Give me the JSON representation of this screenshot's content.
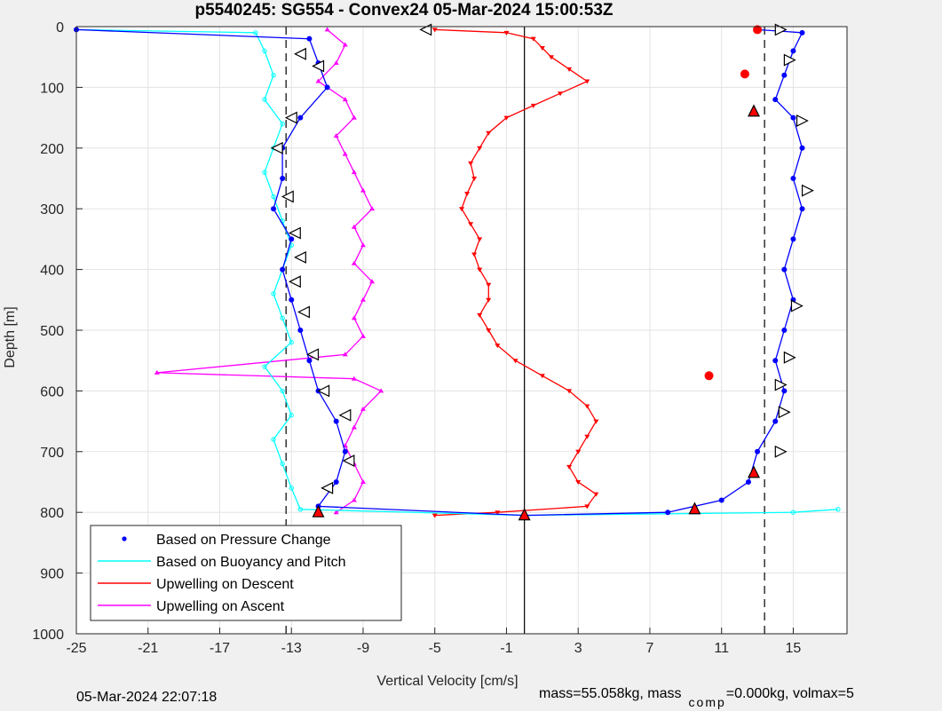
{
  "figure": {
    "background": "#f0f0f0",
    "footer_timestamp": "05-Mar-2024 22:07:18",
    "footer_mass_a": "mass=55.058kg, mass",
    "footer_mass_sub": "comp",
    "footer_mass_b": "=0.000kg, volmax=5"
  },
  "chart_data": {
    "type": "line",
    "title": "p5540245: SG554 - Convex24 05-Mar-2024 15:00:53Z",
    "xlabel": "Vertical Velocity [cm/s]",
    "ylabel": "Depth [m]",
    "xlim": [
      -25,
      18
    ],
    "ylim": [
      0,
      1000
    ],
    "y_reversed": true,
    "grid": true,
    "xticks": [
      -25,
      -21,
      -17,
      -13,
      -9,
      -5,
      -1,
      3,
      7,
      11,
      15
    ],
    "yticks": [
      0,
      100,
      200,
      300,
      400,
      500,
      600,
      700,
      800,
      900,
      1000
    ],
    "reference_lines": [
      {
        "x": -13.3,
        "style": "dashed"
      },
      {
        "x": 0,
        "style": "solid"
      },
      {
        "x": 13.4,
        "style": "dashed"
      }
    ],
    "legend": {
      "location": "bottom-left",
      "entries": [
        {
          "label": "Based on Pressure Change",
          "color": "#0000ff",
          "marker": "dot"
        },
        {
          "label": "Based on Buoyancy and Pitch",
          "color": "#00ffff",
          "marker": "line"
        },
        {
          "label": "Upwelling on Descent",
          "color": "#ff0000",
          "marker": "line"
        },
        {
          "label": "Upwelling on Ascent",
          "color": "#ff00ff",
          "marker": "line"
        }
      ]
    },
    "colors": {
      "pressure": "#0000ff",
      "buoyancy": "#00ffff",
      "descent": "#ff0000",
      "ascent": "#ff00ff",
      "triangle_fill_dive": "#ffffff",
      "triangle_fill_climb": "#ff0000"
    },
    "series": [
      {
        "name": "Upwelling on Descent",
        "color": "#ff0000",
        "points": [
          [
            -5.0,
            5
          ],
          [
            -1.0,
            10
          ],
          [
            0.5,
            20
          ],
          [
            1.0,
            35
          ],
          [
            1.5,
            50
          ],
          [
            2.5,
            70
          ],
          [
            3.5,
            90
          ],
          [
            2.0,
            110
          ],
          [
            0.5,
            130
          ],
          [
            -1.0,
            150
          ],
          [
            -2.0,
            175
          ],
          [
            -2.5,
            200
          ],
          [
            -3.0,
            225
          ],
          [
            -2.8,
            250
          ],
          [
            -3.2,
            275
          ],
          [
            -3.5,
            300
          ],
          [
            -3.0,
            325
          ],
          [
            -2.5,
            350
          ],
          [
            -2.8,
            375
          ],
          [
            -2.5,
            400
          ],
          [
            -2.0,
            425
          ],
          [
            -2.0,
            450
          ],
          [
            -2.5,
            475
          ],
          [
            -2.0,
            500
          ],
          [
            -1.5,
            525
          ],
          [
            -0.5,
            550
          ],
          [
            1.0,
            575
          ],
          [
            2.5,
            600
          ],
          [
            3.5,
            625
          ],
          [
            4.0,
            650
          ],
          [
            3.5,
            675
          ],
          [
            3.0,
            700
          ],
          [
            2.5,
            725
          ],
          [
            3.0,
            750
          ],
          [
            4.0,
            770
          ],
          [
            3.5,
            790
          ],
          [
            -1.5,
            800
          ],
          [
            -5.0,
            805
          ]
        ]
      },
      {
        "name": "Upwelling on Ascent",
        "color": "#ff00ff",
        "points": [
          [
            -11.0,
            5
          ],
          [
            -10.0,
            30
          ],
          [
            -10.5,
            60
          ],
          [
            -11.5,
            90
          ],
          [
            -10.0,
            120
          ],
          [
            -9.5,
            150
          ],
          [
            -10.5,
            180
          ],
          [
            -10.0,
            210
          ],
          [
            -9.5,
            240
          ],
          [
            -9.0,
            270
          ],
          [
            -8.5,
            300
          ],
          [
            -9.5,
            330
          ],
          [
            -9.0,
            360
          ],
          [
            -9.5,
            390
          ],
          [
            -8.5,
            420
          ],
          [
            -9.0,
            450
          ],
          [
            -9.5,
            480
          ],
          [
            -9.0,
            510
          ],
          [
            -10.0,
            540
          ],
          [
            -20.5,
            570
          ],
          [
            -9.5,
            580
          ],
          [
            -8.0,
            600
          ],
          [
            -9.0,
            630
          ],
          [
            -9.5,
            660
          ],
          [
            -10.0,
            690
          ],
          [
            -9.5,
            720
          ],
          [
            -9.0,
            750
          ],
          [
            -9.5,
            780
          ],
          [
            -10.5,
            800
          ]
        ]
      },
      {
        "name": "Based on Buoyancy and Pitch",
        "color": "#00ffff",
        "points": [
          [
            -25.0,
            5
          ],
          [
            -15.0,
            10
          ],
          [
            -14.5,
            40
          ],
          [
            -14.0,
            80
          ],
          [
            -14.5,
            120
          ],
          [
            -13.5,
            160
          ],
          [
            -14.0,
            200
          ],
          [
            -14.5,
            240
          ],
          [
            -14.0,
            280
          ],
          [
            -13.5,
            320
          ],
          [
            -13.0,
            360
          ],
          [
            -13.5,
            400
          ],
          [
            -14.0,
            440
          ],
          [
            -13.5,
            480
          ],
          [
            -13.0,
            520
          ],
          [
            -14.5,
            560
          ],
          [
            -13.5,
            600
          ],
          [
            -13.0,
            640
          ],
          [
            -14.0,
            680
          ],
          [
            -13.5,
            720
          ],
          [
            -13.0,
            760
          ],
          [
            -12.5,
            795
          ],
          [
            0.0,
            805
          ],
          [
            15.0,
            800
          ],
          [
            17.5,
            795
          ]
        ]
      },
      {
        "name": "Based on Pressure Change",
        "color": "#0000ff",
        "points": [
          [
            -25.0,
            5
          ],
          [
            -12.0,
            20
          ],
          [
            -11.5,
            60
          ],
          [
            -11.0,
            100
          ],
          [
            -12.5,
            150
          ],
          [
            -13.5,
            200
          ],
          [
            -13.5,
            250
          ],
          [
            -14.0,
            300
          ],
          [
            -13.0,
            350
          ],
          [
            -13.5,
            400
          ],
          [
            -13.0,
            450
          ],
          [
            -12.5,
            500
          ],
          [
            -12.0,
            550
          ],
          [
            -11.5,
            600
          ],
          [
            -10.5,
            650
          ],
          [
            -10.0,
            700
          ],
          [
            -10.5,
            750
          ],
          [
            -11.5,
            790
          ],
          [
            0.0,
            805
          ],
          [
            8.0,
            800
          ],
          [
            11.0,
            780
          ],
          [
            12.5,
            750
          ],
          [
            13.0,
            700
          ],
          [
            14.0,
            650
          ],
          [
            14.5,
            600
          ],
          [
            14.0,
            550
          ],
          [
            14.5,
            500
          ],
          [
            15.0,
            450
          ],
          [
            14.5,
            400
          ],
          [
            15.0,
            350
          ],
          [
            15.5,
            300
          ],
          [
            15.0,
            250
          ],
          [
            15.5,
            200
          ],
          [
            15.0,
            150
          ],
          [
            14.0,
            120
          ],
          [
            14.5,
            80
          ],
          [
            15.0,
            40
          ],
          [
            15.5,
            10
          ],
          [
            13.0,
            5
          ]
        ]
      }
    ],
    "markers": {
      "dive_triangles": [
        [
          -5.5,
          5
        ],
        [
          -12.5,
          45
        ],
        [
          -11.5,
          65
        ],
        [
          -13.0,
          150
        ],
        [
          -13.8,
          200
        ],
        [
          -13.2,
          280
        ],
        [
          -12.8,
          340
        ],
        [
          -12.5,
          380
        ],
        [
          -12.8,
          420
        ],
        [
          -12.3,
          470
        ],
        [
          -11.8,
          540
        ],
        [
          -11.2,
          600
        ],
        [
          -10.0,
          640
        ],
        [
          -9.8,
          715
        ],
        [
          -11.0,
          760
        ],
        [
          14.3,
          5
        ],
        [
          14.8,
          55
        ],
        [
          15.5,
          155
        ],
        [
          15.8,
          270
        ],
        [
          15.2,
          460
        ],
        [
          14.8,
          545
        ],
        [
          14.3,
          590
        ],
        [
          14.5,
          635
        ],
        [
          14.3,
          700
        ]
      ],
      "climb_triangles": [
        [
          -11.5,
          800
        ],
        [
          0.0,
          805
        ],
        [
          9.5,
          795
        ],
        [
          12.8,
          140
        ],
        [
          12.8,
          735
        ]
      ],
      "red_dots": [
        [
          13.0,
          5
        ],
        [
          12.3,
          78
        ],
        [
          10.3,
          575
        ]
      ]
    }
  }
}
